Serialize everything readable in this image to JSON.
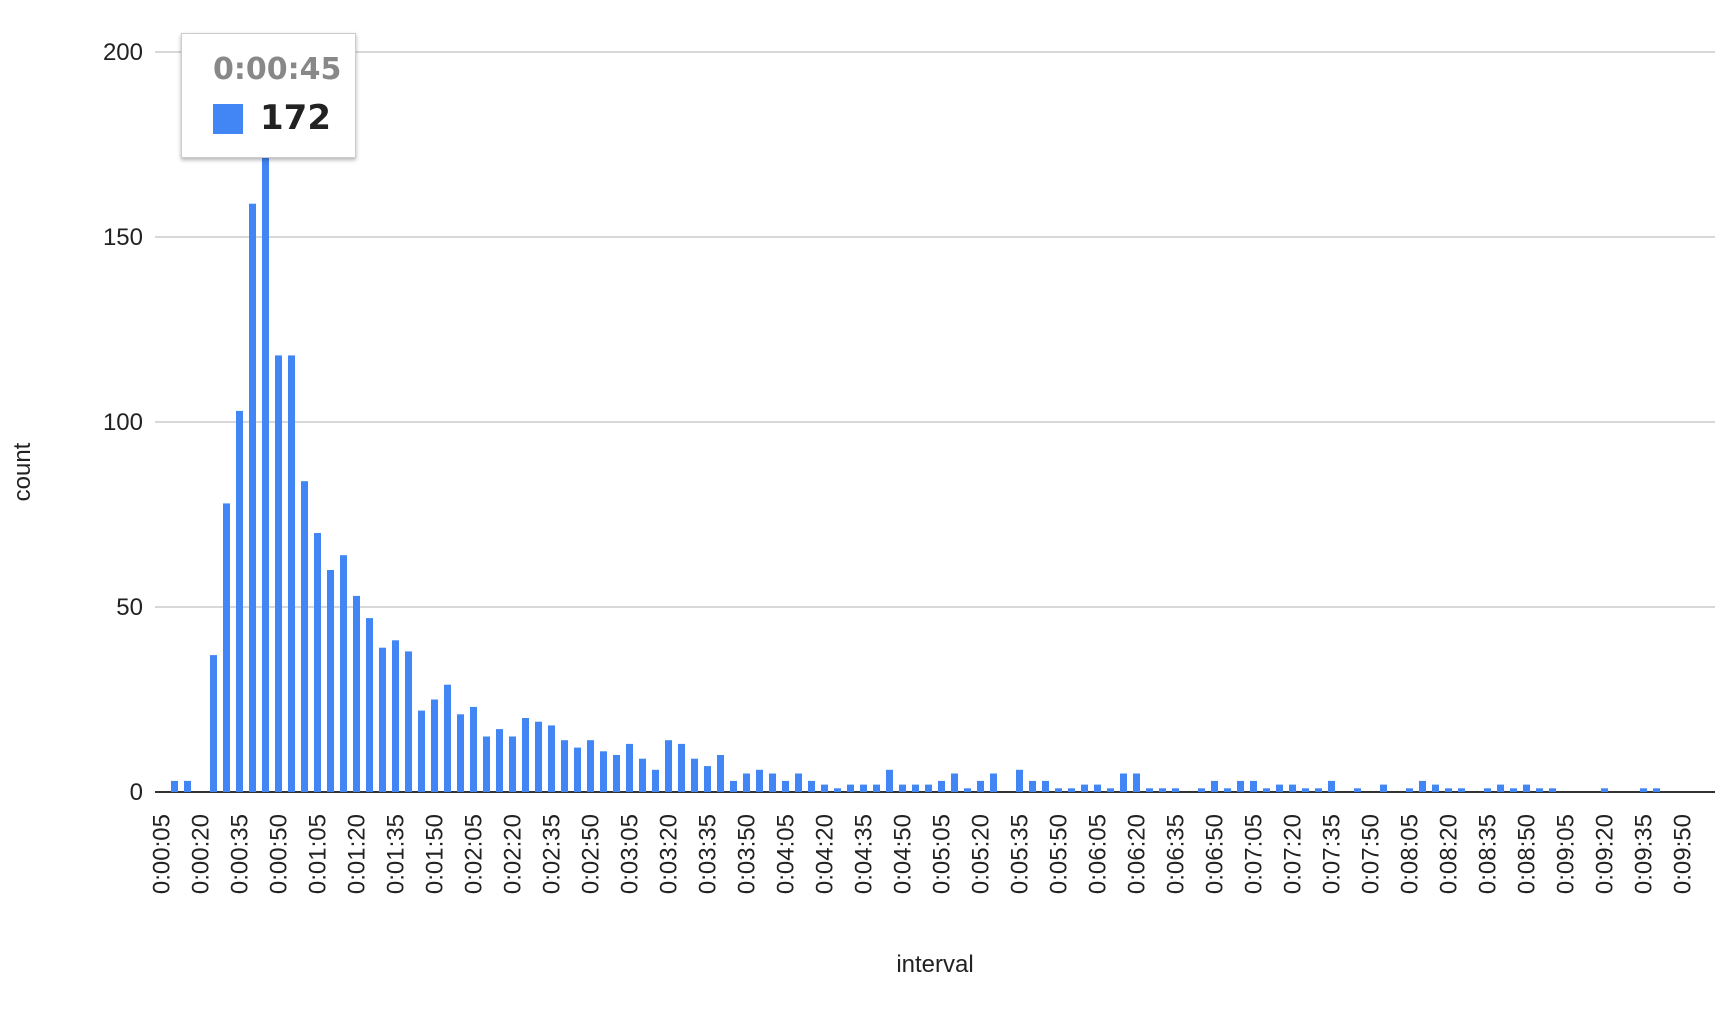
{
  "chart_data": {
    "type": "bar",
    "x_label": "interval",
    "y_label": "count",
    "categories": [
      "0:00:05",
      null,
      null,
      "0:00:20",
      null,
      null,
      "0:00:35",
      null,
      null,
      "0:00:50",
      null,
      null,
      "0:01:05",
      null,
      null,
      "0:01:20",
      null,
      null,
      "0:01:35",
      null,
      null,
      "0:01:50",
      null,
      null,
      "0:02:05",
      null,
      null,
      "0:02:20",
      null,
      null,
      "0:02:35",
      null,
      null,
      "0:02:50",
      null,
      null,
      "0:03:05",
      null,
      null,
      "0:03:20",
      null,
      null,
      "0:03:35",
      null,
      null,
      "0:03:50",
      null,
      null,
      "0:04:05",
      null,
      null,
      "0:04:20",
      null,
      null,
      "0:04:35",
      null,
      null,
      "0:04:50",
      null,
      null,
      "0:05:05",
      null,
      null,
      "0:05:20",
      null,
      null,
      "0:05:35",
      null,
      null,
      "0:05:50",
      null,
      null,
      "0:06:05",
      null,
      null,
      "0:06:20",
      null,
      null,
      "0:06:35",
      null,
      null,
      "0:06:50",
      null,
      null,
      "0:07:05",
      null,
      null,
      "0:07:20",
      null,
      null,
      "0:07:35",
      null,
      null,
      "0:07:50",
      null,
      null,
      "0:08:05",
      null,
      null,
      "0:08:20",
      null,
      null,
      "0:08:35",
      null,
      null,
      "0:08:50",
      null,
      null,
      "0:09:05",
      null,
      null,
      "0:09:20",
      null,
      null,
      "0:09:35",
      null,
      null,
      "0:09:50",
      null,
      null
    ],
    "values": [
      0,
      3,
      3,
      0,
      37,
      78,
      103,
      159,
      172,
      118,
      118,
      84,
      70,
      60,
      64,
      53,
      47,
      39,
      41,
      38,
      22,
      25,
      29,
      21,
      23,
      15,
      17,
      15,
      20,
      19,
      18,
      14,
      12,
      14,
      11,
      10,
      13,
      9,
      6,
      14,
      13,
      9,
      7,
      10,
      3,
      5,
      6,
      5,
      3,
      5,
      3,
      2,
      1,
      2,
      2,
      2,
      6,
      2,
      2,
      2,
      3,
      5,
      1,
      3,
      5,
      0,
      6,
      3,
      3,
      1,
      1,
      2,
      2,
      1,
      5,
      5,
      1,
      1,
      1,
      0,
      1,
      3,
      1,
      3,
      3,
      1,
      2,
      2,
      1,
      1,
      3,
      0,
      1,
      0,
      2,
      0,
      1,
      3,
      2,
      1,
      1,
      0,
      1,
      2,
      1,
      2,
      1,
      1,
      0,
      0,
      0,
      1,
      0,
      0,
      1,
      1,
      0,
      0,
      0,
      0
    ],
    "color": "#4285f4",
    "ylim": [
      0,
      200
    ],
    "yticks": [
      0,
      50,
      100,
      150,
      200
    ],
    "grid": true,
    "tooltip": {
      "category": "0:00:45"
    }
  }
}
